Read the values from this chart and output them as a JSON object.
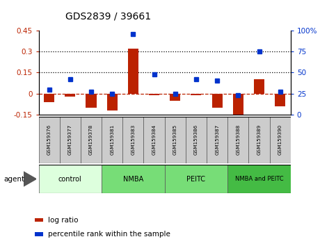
{
  "title": "GDS2839 / 39661",
  "categories": [
    "GSM159376",
    "GSM159377",
    "GSM159378",
    "GSM159381",
    "GSM159383",
    "GSM159384",
    "GSM159385",
    "GSM159386",
    "GSM159387",
    "GSM159388",
    "GSM159389",
    "GSM159390"
  ],
  "log_ratios": [
    -0.06,
    -0.02,
    -0.1,
    -0.12,
    0.32,
    -0.01,
    -0.05,
    -0.01,
    -0.1,
    -0.19,
    0.1,
    -0.09
  ],
  "percentile_ranks": [
    30,
    42,
    27,
    25,
    96,
    48,
    25,
    42,
    40,
    23,
    75,
    27
  ],
  "bar_color": "#bb2200",
  "dot_color": "#0033cc",
  "ylim_left": [
    -0.15,
    0.45
  ],
  "ylim_right": [
    0,
    100
  ],
  "yticks_left": [
    -0.15,
    0,
    0.15,
    0.3,
    0.45
  ],
  "yticks_right": [
    0,
    25,
    50,
    75,
    100
  ],
  "hlines": [
    0.15,
    0.3
  ],
  "groups": [
    {
      "label": "control",
      "start": 0,
      "end": 3,
      "color": "#ddffdd"
    },
    {
      "label": "NMBA",
      "start": 3,
      "end": 6,
      "color": "#77dd77"
    },
    {
      "label": "PEITC",
      "start": 6,
      "end": 9,
      "color": "#77dd77"
    },
    {
      "label": "NMBA and PEITC",
      "start": 9,
      "end": 12,
      "color": "#44bb44"
    }
  ],
  "agent_label": "agent",
  "legend_logratio": "log ratio",
  "legend_percentile": "percentile rank within the sample",
  "background_color": "#ffffff"
}
